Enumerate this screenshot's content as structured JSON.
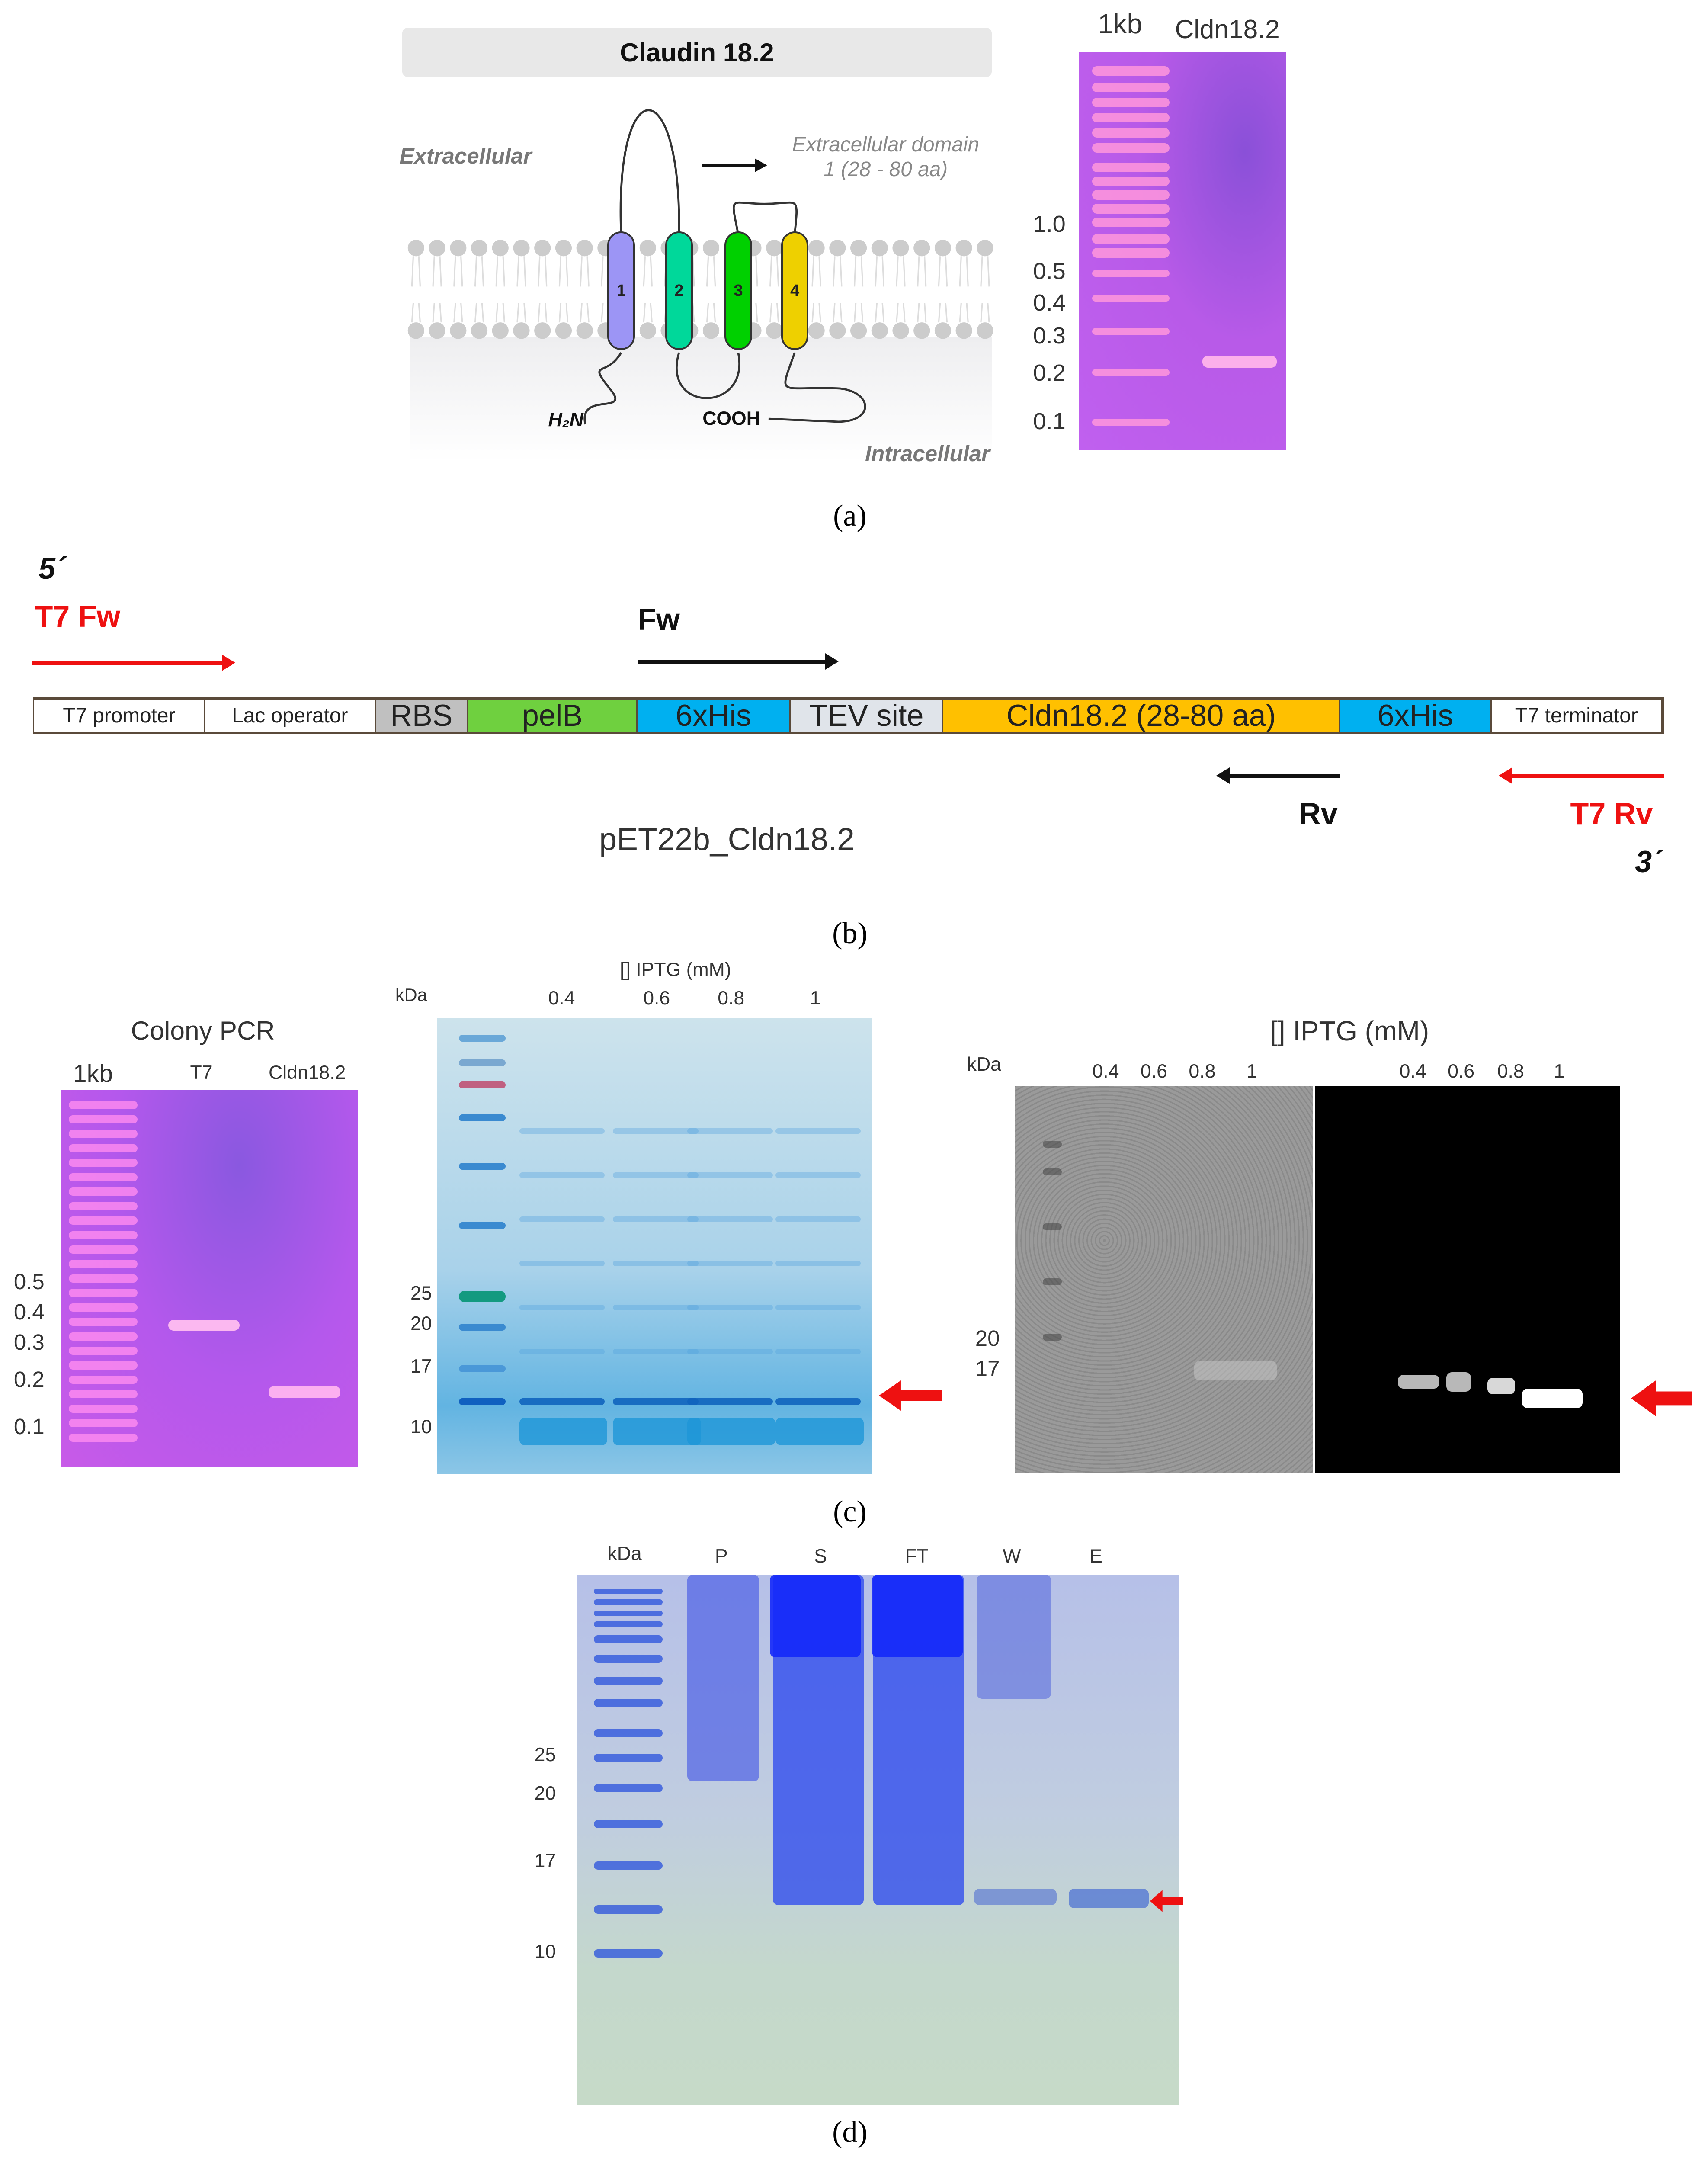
{
  "panel_a": {
    "title": "Claudin 18.2",
    "extracellular": "Extracellular",
    "intracellular": "Intracellular",
    "domain_line1": "Extracellular domain",
    "domain_line2": "1 (28 - 80 aa)",
    "n_term": "H₂N",
    "c_term": "COOH",
    "helices": [
      "1",
      "2",
      "3",
      "4"
    ],
    "helix_colors": [
      "#9c95f5",
      "#00d89a",
      "#00d000",
      "#eed000"
    ],
    "gel": {
      "lanes": [
        "1kb",
        "Cldn18.2"
      ],
      "markers": [
        "1.0",
        "0.5",
        "0.4",
        "0.3",
        "0.2",
        "0.1"
      ]
    },
    "caption": "(a)"
  },
  "panel_b": {
    "five_prime": "5´",
    "three_prime": "3´",
    "t7_fw": "T7 Fw",
    "fw": "Fw",
    "rv": "Rv",
    "t7_rv": "T7 Rv",
    "plasmid": "pET22b_Cldn18.2",
    "segments": [
      {
        "label": "T7 promoter",
        "color": "#ffffff"
      },
      {
        "label": "Lac operator",
        "color": "#ffffff"
      },
      {
        "label": "RBS",
        "color": "#c0c0c0"
      },
      {
        "label": "pelB",
        "color": "#6fd03f"
      },
      {
        "label": "6xHis",
        "color": "#00b0f0"
      },
      {
        "label": "TEV site",
        "color": "#e0e4ea"
      },
      {
        "label": "Cldn18.2 (28-80 aa)",
        "color": "#ffc000"
      },
      {
        "label": "6xHis",
        "color": "#00b0f0"
      },
      {
        "label": "T7 terminator",
        "color": "#ffffff"
      }
    ],
    "caption": "(b)"
  },
  "panel_c": {
    "pcr": {
      "title": "Colony PCR",
      "lanes": [
        "1kb",
        "T7",
        "Cldn18.2"
      ],
      "markers": [
        "0.5",
        "0.4",
        "0.3",
        "0.2",
        "0.1"
      ]
    },
    "sds": {
      "title": "[] IPTG (mM)",
      "kda": "kDa",
      "lanes": [
        "0.4",
        "0.6",
        "0.8",
        "1"
      ],
      "markers": [
        "25",
        "20",
        "17",
        "10"
      ]
    },
    "western": {
      "title": "[] IPTG (mM)",
      "kda": "kDa",
      "lanes_left": [
        "0.4",
        "0.6",
        "0.8",
        "1"
      ],
      "lanes_right": [
        "0.4",
        "0.6",
        "0.8",
        "1"
      ],
      "markers": [
        "20",
        "17"
      ]
    },
    "caption": "(c)"
  },
  "panel_d": {
    "kda": "kDa",
    "lanes": [
      "P",
      "S",
      "FT",
      "W",
      "E"
    ],
    "markers": [
      "25",
      "20",
      "17",
      "10"
    ],
    "caption": "(d)"
  },
  "colors": {
    "arrow_red": "#ee1111",
    "agarose": "#c050f0",
    "coomassie": "#3a9bd8"
  }
}
